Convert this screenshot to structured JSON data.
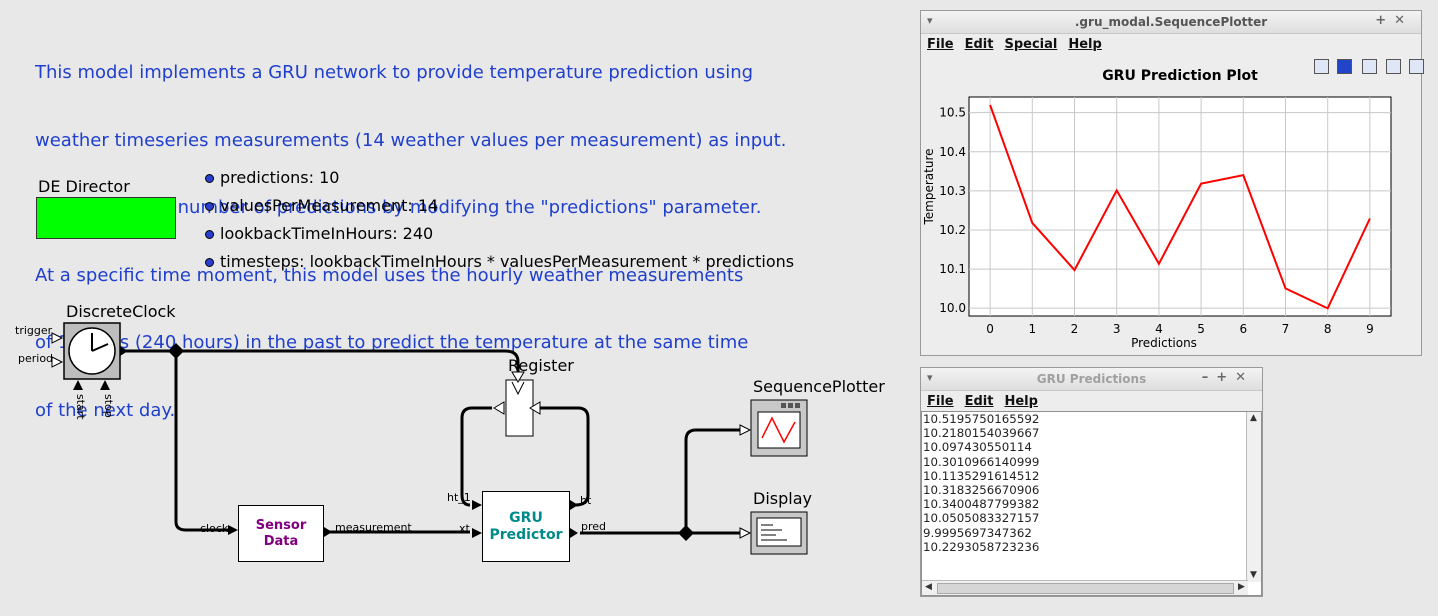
{
  "description": [
    "This model implements a GRU network to provide temperature prediction using",
    "weather timeseries measurements (14 weather values per measurement) as input.",
    "Set the desired number of predictions by modifying the \"predictions\" parameter.",
    "At a specific time moment, this model uses the hourly weather measurements",
    "of 10 days (240 hours) in the past to predict the temperature at the same time",
    "of the next day."
  ],
  "director": {
    "label": "DE Director",
    "color": "#00ff00"
  },
  "parameters": [
    "predictions: 10",
    "valuesPerMeasurement: 14",
    "lookbackTimeInHours: 240",
    "timesteps: lookbackTimeInHours * valuesPerMeasurement * predictions"
  ],
  "actors": {
    "discrete_clock": {
      "label": "DiscreteClock",
      "ports": [
        "trigger",
        "period",
        "start",
        "stop"
      ]
    },
    "register": {
      "label": "Register"
    },
    "sequence_plotter": {
      "label": "SequencePlotter"
    },
    "display": {
      "label": "Display"
    },
    "sensor_data": {
      "line1": "Sensor",
      "line2": "Data",
      "in_port": "clock",
      "out_port": "measurement"
    },
    "gru_predictor": {
      "line1": "GRU",
      "line2": "Predictor",
      "in_port_1": "ht_1",
      "in_port_2": "xt",
      "out_port_1": "ht",
      "out_port_2": "pred"
    }
  },
  "plotter_window": {
    "title": ".gru_modal.SequencePlotter",
    "menu": [
      "File",
      "Edit",
      "Special",
      "Help"
    ],
    "toolbar_icons": [
      "print-icon",
      "reset-axes-icon",
      "stem-plot-icon",
      "fill-icon",
      "zoom-fit-icon"
    ]
  },
  "chart_data": {
    "type": "line",
    "title": "GRU Prediction Plot",
    "xlabel": "Predictions",
    "ylabel": "Temperature",
    "x": [
      0,
      1,
      2,
      3,
      4,
      5,
      6,
      7,
      8,
      9
    ],
    "series": [
      {
        "values": [
          10.5195750165592,
          10.2180154039667,
          10.097430550114,
          10.3010966140999,
          10.1135291614512,
          10.3183256670906,
          10.3400487799382,
          10.0505083327157,
          9.9995697347362,
          10.2293058723236
        ],
        "color": "#ff0000"
      }
    ],
    "xlim": [
      -0.5,
      9.5
    ],
    "ylim": [
      9.98,
      10.54
    ],
    "yticks": [
      "10.0",
      "10.1",
      "10.2",
      "10.3",
      "10.4",
      "10.5"
    ],
    "xticks": [
      "0",
      "1",
      "2",
      "3",
      "4",
      "5",
      "6",
      "7",
      "8",
      "9"
    ],
    "grid": true
  },
  "predictions_window": {
    "title": "GRU Predictions",
    "menu": [
      "File",
      "Edit",
      "Help"
    ],
    "lines": [
      "10.5195750165592",
      "10.2180154039667",
      "10.097430550114",
      "10.3010966140999",
      "10.1135291614512",
      "10.3183256670906",
      "10.3400487799382",
      "10.0505083327157",
      "9.9995697347362",
      "10.2293058723236"
    ]
  }
}
